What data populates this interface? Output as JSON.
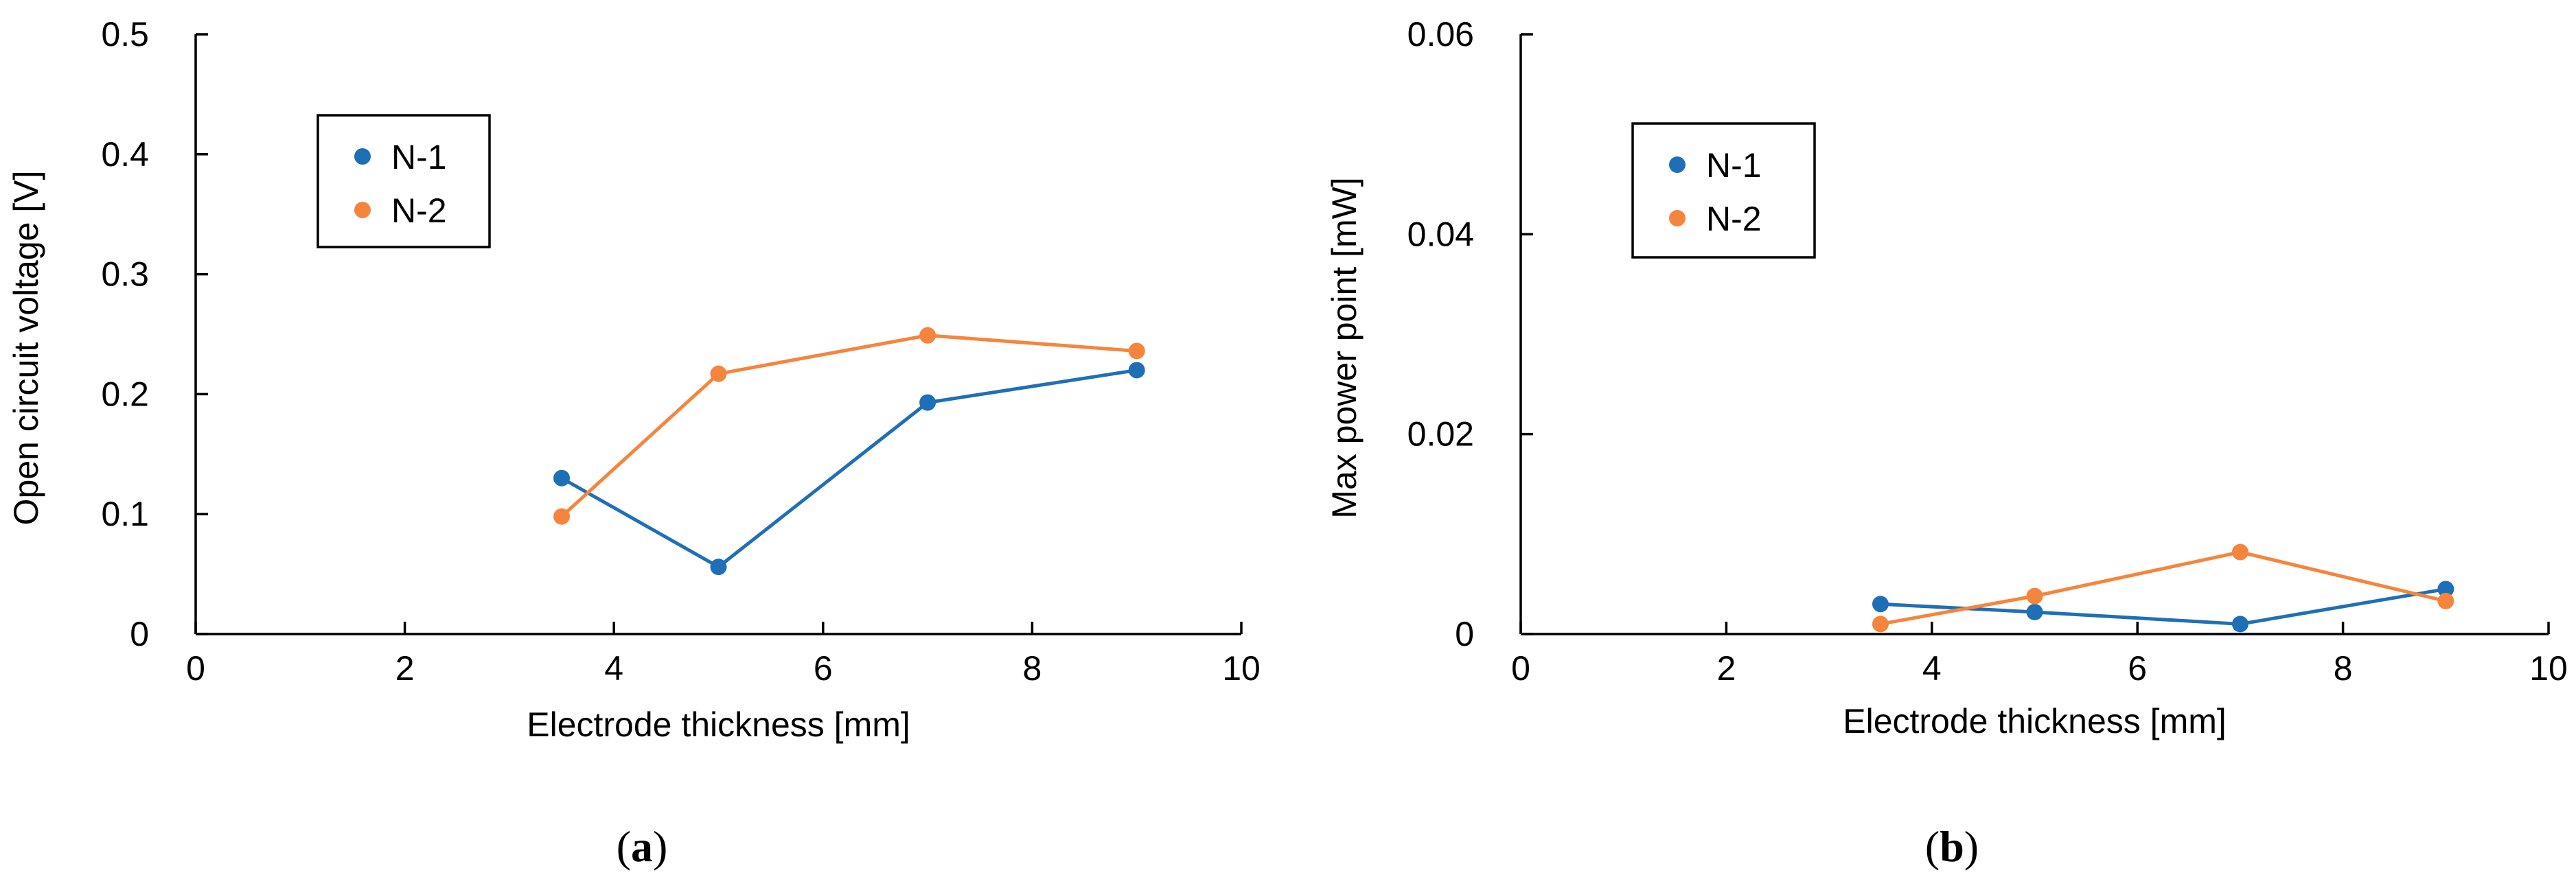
{
  "colors": {
    "n1": "#1f6fb7",
    "n2": "#f5853d",
    "axis": "#000000"
  },
  "chart_data": [
    {
      "id": "a",
      "type": "line",
      "panel_label": "a",
      "xlabel": "Electrode thickness [mm]",
      "ylabel": "Open circuit voltage  [V]",
      "xlim": [
        0,
        10
      ],
      "ylim": [
        0,
        0.5
      ],
      "xticks": [
        0,
        2,
        4,
        6,
        8,
        10
      ],
      "xtick_labels": [
        "0",
        "2",
        "4",
        "6",
        "8",
        "10"
      ],
      "yticks": [
        0,
        0.1,
        0.2,
        0.3,
        0.4,
        0.5
      ],
      "ytick_labels": [
        "0",
        "0.1",
        "0.2",
        "0.3",
        "0.4",
        "0.5"
      ],
      "legend": "top-left",
      "series": [
        {
          "name": "N-1",
          "x": [
            3.5,
            5,
            7,
            9
          ],
          "y": [
            0.13,
            0.056,
            0.193,
            0.22
          ]
        },
        {
          "name": "N-2",
          "x": [
            3.5,
            5,
            7,
            9
          ],
          "y": [
            0.098,
            0.217,
            0.249,
            0.236
          ]
        }
      ]
    },
    {
      "id": "b",
      "type": "line",
      "panel_label": "b",
      "xlabel": "Electrode thickness [mm]",
      "ylabel": "Max power point  [mW]",
      "xlim": [
        0,
        10
      ],
      "ylim": [
        0,
        0.06
      ],
      "xticks": [
        0,
        2,
        4,
        6,
        8,
        10
      ],
      "xtick_labels": [
        "0",
        "2",
        "4",
        "6",
        "8",
        "10"
      ],
      "yticks": [
        0,
        0.02,
        0.04,
        0.06
      ],
      "ytick_labels": [
        "0",
        "0.02",
        "0.04",
        "0.06"
      ],
      "legend": "top-left",
      "series": [
        {
          "name": "N-1",
          "x": [
            3.5,
            5,
            7,
            9
          ],
          "y": [
            0.003,
            0.0022,
            0.001,
            0.0045
          ]
        },
        {
          "name": "N-2",
          "x": [
            3.5,
            5,
            7,
            9
          ],
          "y": [
            0.001,
            0.0038,
            0.0082,
            0.0033
          ]
        }
      ]
    }
  ]
}
